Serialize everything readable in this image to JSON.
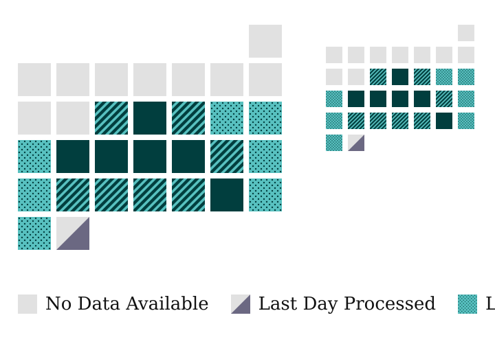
{
  "colors": {
    "empty": "#e1e1e1",
    "dark": "#013e3e",
    "teal": "#58c1c0",
    "last_day": "#6b6882"
  },
  "calendars": [
    {
      "name": "large-calendar",
      "rows": [
        [
          "blank",
          "blank",
          "blank",
          "blank",
          "blank",
          "blank",
          "empty"
        ],
        [
          "empty",
          "empty",
          "empty",
          "empty",
          "empty",
          "empty",
          "empty"
        ],
        [
          "empty",
          "empty",
          "stripe",
          "dark",
          "stripe",
          "dots",
          "dots"
        ],
        [
          "dots",
          "dark",
          "dark",
          "dark",
          "dark",
          "stripe",
          "dots"
        ],
        [
          "dots",
          "stripe",
          "stripe",
          "stripe",
          "stripe",
          "dark",
          "dots"
        ],
        [
          "dots",
          "last",
          "blank",
          "blank",
          "blank",
          "blank",
          "blank"
        ]
      ]
    },
    {
      "name": "small-calendar",
      "rows": [
        [
          "blank",
          "blank",
          "blank",
          "blank",
          "blank",
          "blank",
          "empty"
        ],
        [
          "empty",
          "empty",
          "empty",
          "empty",
          "empty",
          "empty",
          "empty"
        ],
        [
          "empty",
          "empty",
          "stripe",
          "dark",
          "stripe",
          "dots",
          "dots"
        ],
        [
          "dots",
          "dark",
          "dark",
          "dark",
          "dark",
          "stripe",
          "dots"
        ],
        [
          "dots",
          "stripe",
          "stripe",
          "stripe",
          "stripe",
          "dark",
          "dots"
        ],
        [
          "dots",
          "last",
          "blank",
          "blank",
          "blank",
          "blank",
          "blank"
        ]
      ]
    }
  ],
  "legend": {
    "no_data": {
      "label": "No Data Available",
      "kind": "empty"
    },
    "last_day": {
      "label": "Last Day Processed",
      "kind": "last"
    },
    "third": {
      "label": "L",
      "kind": "dots"
    }
  }
}
